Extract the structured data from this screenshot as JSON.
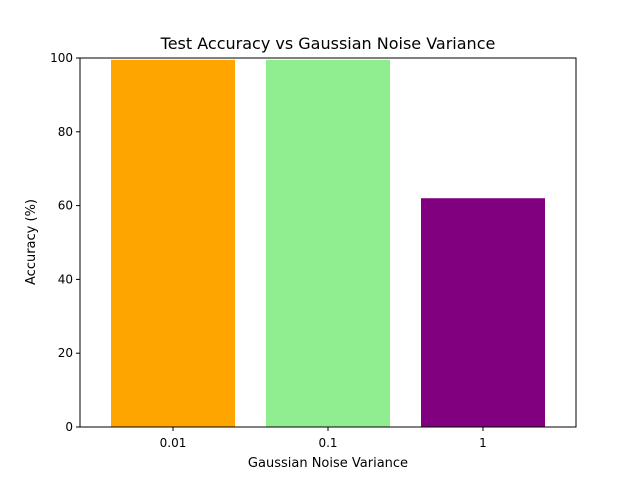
{
  "chart_data": {
    "type": "bar",
    "title": "Test Accuracy vs Gaussian Noise Variance",
    "xlabel": "Gaussian Noise Variance",
    "ylabel": "Accuracy (%)",
    "categories": [
      "0.01",
      "0.1",
      "1"
    ],
    "values": [
      99.5,
      99.5,
      62.0
    ],
    "colors": [
      "#ffa500",
      "#90ee90",
      "#800080"
    ],
    "ylim": [
      0,
      100
    ],
    "yticks": [
      0,
      20,
      40,
      60,
      80,
      100
    ],
    "grid": false,
    "legend": "none"
  }
}
